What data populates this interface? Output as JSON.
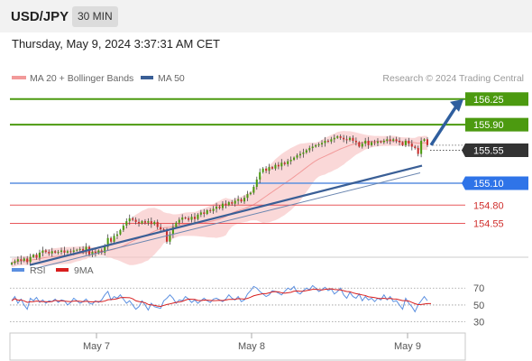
{
  "header": {
    "pair": "USD/JPY",
    "timeframe": "30 MIN"
  },
  "datetime": "Thursday, May 9, 2024 3:37:31 AM CET",
  "credit": "Research © 2024 Trading Central",
  "colors": {
    "green": "#4c9a10",
    "blue": "#5b8fe0",
    "red": "#e8585b",
    "arrow": "#2e5e9e",
    "up": "#4c9a10",
    "down": "#c8302e",
    "bb": "#f8c8c8",
    "ma50": "#3a5f96",
    "dark": "#333333"
  },
  "chart_data": [
    {
      "type": "candlestick",
      "legend": [
        {
          "name": "MA 20 + Bollinger Bands",
          "color": "#f29a9a"
        },
        {
          "name": "MA 50",
          "color": "#3a5f96"
        }
      ],
      "ylim": [
        154.1,
        156.42
      ],
      "x_ticks": [
        "May 7",
        "May 8",
        "May 9"
      ],
      "levels": [
        {
          "label": "156.25",
          "value": 156.25,
          "kind": "green"
        },
        {
          "label": "155.90",
          "value": 155.9,
          "kind": "green"
        },
        {
          "label": "155.55",
          "value": 155.55,
          "kind": "current"
        },
        {
          "label": "155.10",
          "value": 155.1,
          "kind": "blue"
        },
        {
          "label": "154.80",
          "value": 154.8,
          "kind": "red"
        },
        {
          "label": "154.55",
          "value": 154.55,
          "kind": "red"
        }
      ],
      "close": [
        154.01,
        154.03,
        154.06,
        154.04,
        154.07,
        154.02,
        154.09,
        154.12,
        154.08,
        154.15,
        154.18,
        154.16,
        154.14,
        154.17,
        154.15,
        154.16,
        154.18,
        154.15,
        154.17,
        154.16,
        154.18,
        154.19,
        154.2,
        154.17,
        154.23,
        154.12,
        154.16,
        154.14,
        154.18,
        154.15,
        154.23,
        154.35,
        154.3,
        154.38,
        154.4,
        154.46,
        154.52,
        154.58,
        154.62,
        154.6,
        154.57,
        154.55,
        154.58,
        154.56,
        154.58,
        154.54,
        154.57,
        154.5,
        154.47,
        154.46,
        154.3,
        154.4,
        154.5,
        154.56,
        154.6,
        154.63,
        154.62,
        154.6,
        154.64,
        154.61,
        154.67,
        154.7,
        154.68,
        154.73,
        154.72,
        154.75,
        154.78,
        154.76,
        154.82,
        154.8,
        154.84,
        154.82,
        154.86,
        154.88,
        154.85,
        154.9,
        154.95,
        154.97,
        155.05,
        155.15,
        155.25,
        155.3,
        155.27,
        155.32,
        155.3,
        155.35,
        155.33,
        155.38,
        155.36,
        155.4,
        155.42,
        155.45,
        155.48,
        155.5,
        155.52,
        155.55,
        155.58,
        155.6,
        155.62,
        155.63,
        155.65,
        155.68,
        155.67,
        155.7,
        155.72,
        155.74,
        155.72,
        155.7,
        155.69,
        155.72,
        155.68,
        155.66,
        155.6,
        155.64,
        155.68,
        155.62,
        155.66,
        155.65,
        155.67,
        155.66,
        155.68,
        155.7,
        155.68,
        155.7,
        155.68,
        155.66,
        155.62,
        155.68,
        155.64,
        155.6,
        155.58,
        155.5,
        155.68,
        155.7,
        155.62
      ],
      "ma50_start": 153.98,
      "ma50_end": 155.34,
      "rsi": {
        "legend": [
          {
            "name": "RSI",
            "color": "#5b8fe0"
          },
          {
            "name": "9MA",
            "color": "#d81e1e"
          }
        ],
        "levels": [
          70,
          50,
          30
        ],
        "ylim": [
          20,
          82
        ],
        "values": [
          55,
          60,
          52,
          57,
          50,
          45,
          58,
          55,
          59,
          53,
          56,
          52,
          55,
          54,
          57,
          53,
          56,
          55,
          50,
          53,
          58,
          55,
          52,
          54,
          57,
          52,
          51,
          55,
          53,
          56,
          62,
          66,
          56,
          60,
          58,
          62,
          57,
          52,
          55,
          50,
          45,
          48,
          55,
          50,
          44,
          52,
          48,
          47,
          46,
          55,
          58,
          62,
          58,
          52,
          56,
          55,
          60,
          57,
          53,
          56,
          52,
          55,
          58,
          55,
          53,
          57,
          58,
          56,
          54,
          57,
          62,
          58,
          56,
          60,
          54,
          56,
          63,
          67,
          72,
          70,
          66,
          63,
          60,
          62,
          67,
          66,
          64,
          62,
          66,
          70,
          68,
          72,
          65,
          63,
          67,
          70,
          68,
          73,
          70,
          66,
          68,
          71,
          67,
          69,
          63,
          66,
          70,
          62,
          58,
          65,
          60,
          58,
          63,
          55,
          60,
          56,
          58,
          54,
          58,
          56,
          62,
          56,
          60,
          54,
          55,
          50,
          45,
          58,
          52,
          48,
          42,
          50,
          55,
          60,
          55
        ]
      }
    }
  ]
}
